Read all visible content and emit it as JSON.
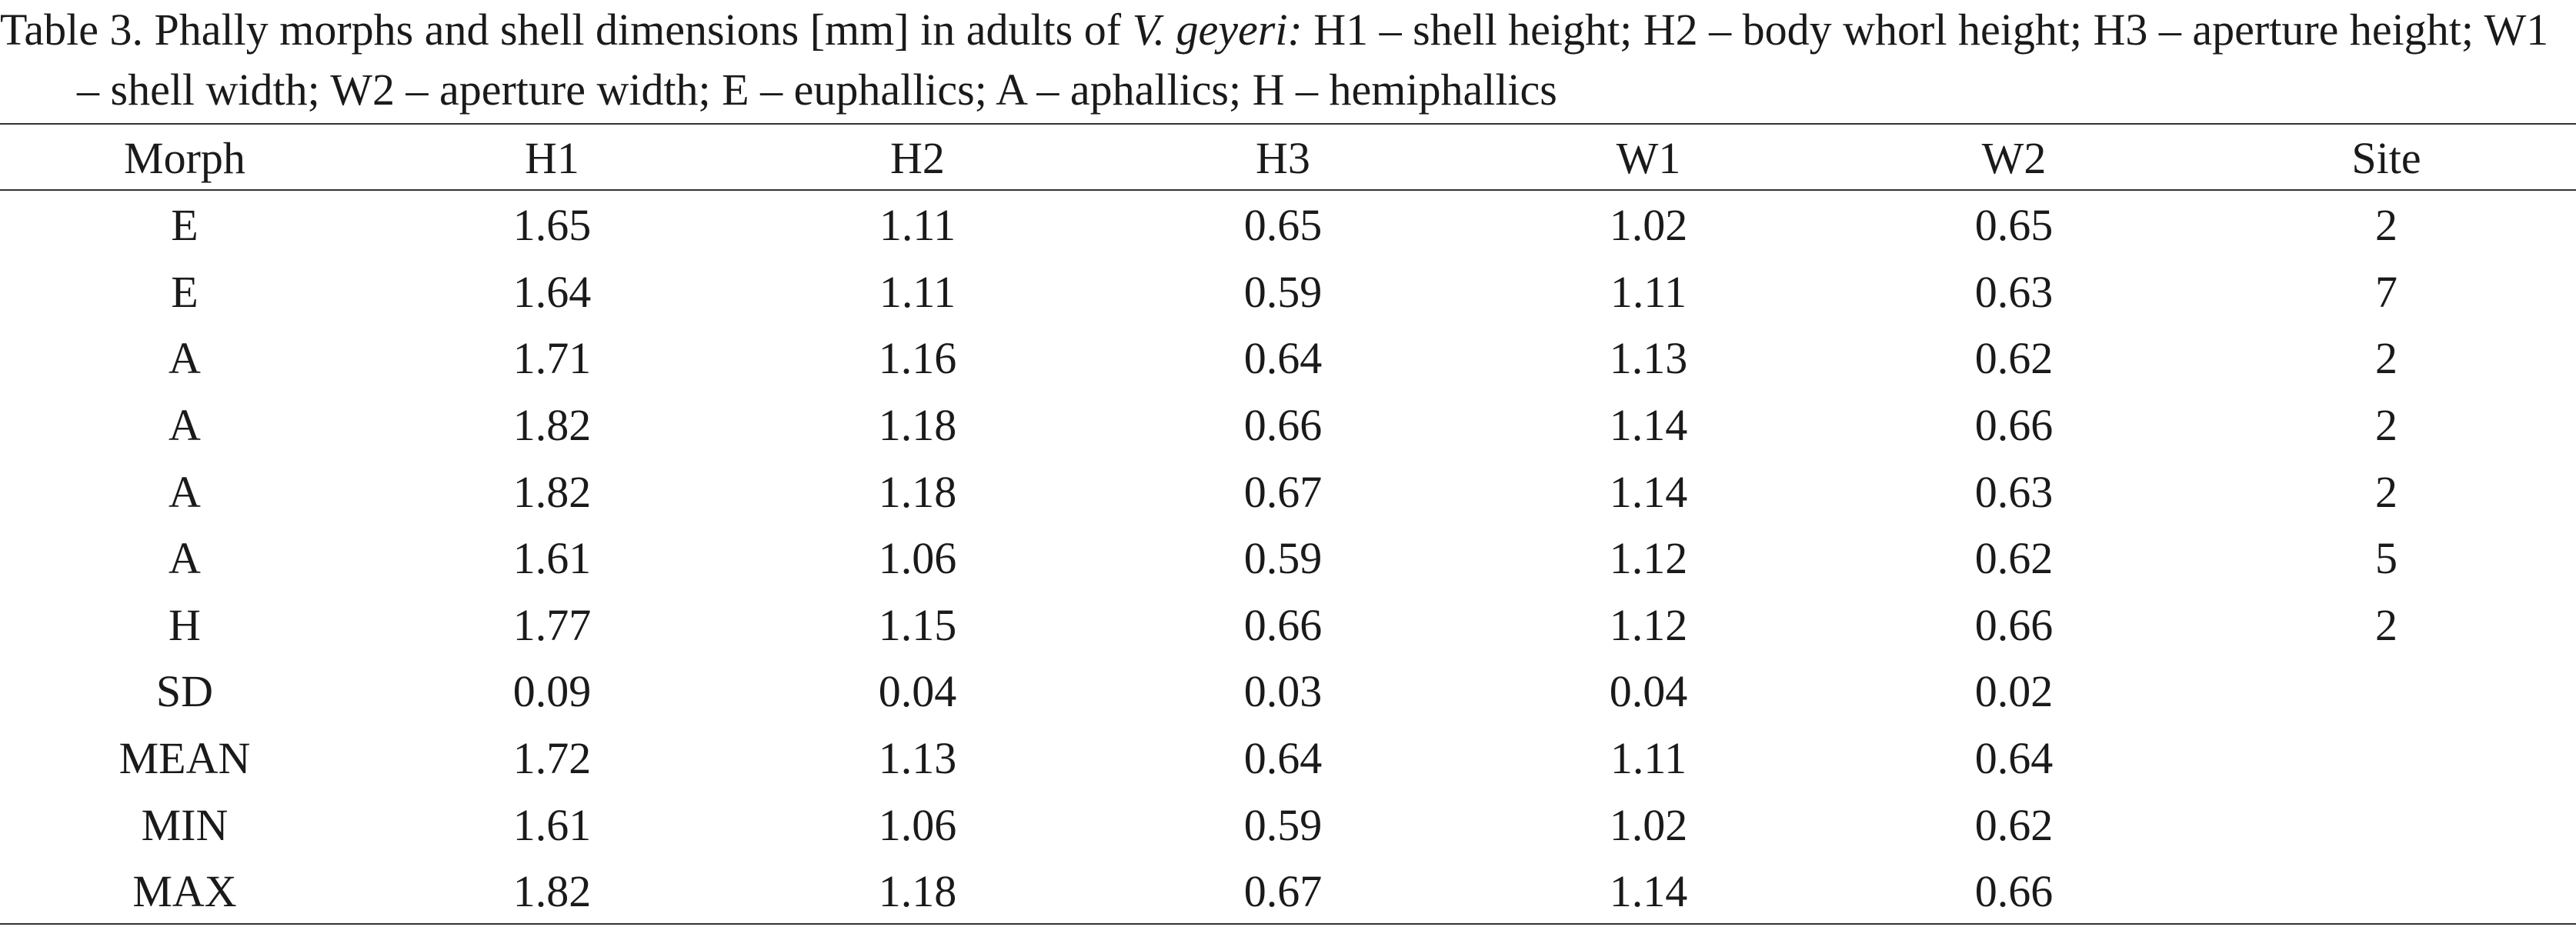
{
  "caption": {
    "prefix": "Table 3. Phally morphs and shell dimensions [mm] in adults of ",
    "species": "V. geyeri:",
    "suffix": " H1 – shell height; H2 – body whorl height; H3 – aperture height; W1 – shell width; W2 – aperture width; E – euphallics; A – aphallics; H – hemiphallics"
  },
  "table": {
    "headers": [
      "Morph",
      "H1",
      "H2",
      "H3",
      "W1",
      "W2",
      "Site"
    ],
    "rows": [
      [
        "E",
        "1.65",
        "1.11",
        "0.65",
        "1.02",
        "0.65",
        "2"
      ],
      [
        "E",
        "1.64",
        "1.11",
        "0.59",
        "1.11",
        "0.63",
        "7"
      ],
      [
        "A",
        "1.71",
        "1.16",
        "0.64",
        "1.13",
        "0.62",
        "2"
      ],
      [
        "A",
        "1.82",
        "1.18",
        "0.66",
        "1.14",
        "0.66",
        "2"
      ],
      [
        "A",
        "1.82",
        "1.18",
        "0.67",
        "1.14",
        "0.63",
        "2"
      ],
      [
        "A",
        "1.61",
        "1.06",
        "0.59",
        "1.12",
        "0.62",
        "5"
      ],
      [
        "H",
        "1.77",
        "1.15",
        "0.66",
        "1.12",
        "0.66",
        "2"
      ],
      [
        "SD",
        "0.09",
        "0.04",
        "0.03",
        "0.04",
        "0.02",
        ""
      ],
      [
        "MEAN",
        "1.72",
        "1.13",
        "0.64",
        "1.11",
        "0.64",
        ""
      ],
      [
        "MIN",
        "1.61",
        "1.06",
        "0.59",
        "1.02",
        "0.62",
        ""
      ],
      [
        "MAX",
        "1.82",
        "1.18",
        "0.67",
        "1.14",
        "0.66",
        ""
      ]
    ]
  }
}
